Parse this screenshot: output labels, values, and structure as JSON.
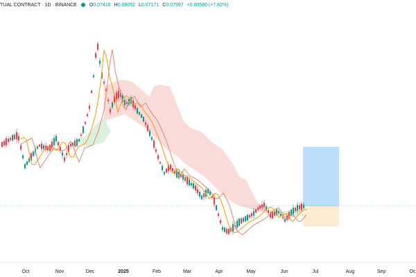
{
  "header": {
    "title": "TUAL CONTRACT · 1D · BINANCE",
    "status_color": "#089981",
    "open_label": "O",
    "open": "0.07416",
    "high_label": "H",
    "high": "0.08052",
    "low_label": "L",
    "low": "0.07171",
    "close_label": "C",
    "close": "0.07997",
    "change": "+0.00580 (+7.82%)"
  },
  "x_axis": {
    "labels": [
      "Oct",
      "Nov",
      "Dec",
      "2025",
      "Feb",
      "Mar",
      "Apr",
      "May",
      "Jun",
      "Jul",
      "Aug",
      "Sep",
      "Oc"
    ],
    "bold_label": "2025"
  },
  "colors": {
    "up": "#089981",
    "down": "#f23645",
    "ma_fast": "#ff9800",
    "ma_slow": "#e8846e",
    "cloud_bear": "#f8d6d3",
    "cloud_bull": "#d7eedc",
    "target_zone": "#bbdefb",
    "stop_zone": "#fdebd2",
    "price_line": "#66bbbb"
  },
  "chart_data": {
    "type": "candlestick",
    "interval": "1D",
    "exchange": "BINANCE",
    "last_ohlc": {
      "open": 0.07416,
      "high": 0.08052,
      "low": 0.07171,
      "close": 0.07997
    },
    "approx_close_path": [
      {
        "month": "Oct",
        "close": 0.52
      },
      {
        "month": "Nov",
        "close": 0.55
      },
      {
        "month": "Dec",
        "close": 0.95
      },
      {
        "month": "2025",
        "close": 0.7
      },
      {
        "month": "Feb",
        "close": 0.5
      },
      {
        "month": "Mar",
        "close": 0.32
      },
      {
        "month": "Apr",
        "close": 0.1
      },
      {
        "month": "May",
        "close": 0.12
      },
      {
        "month": "Jun",
        "close": 0.08
      }
    ],
    "overlays": [
      "ichimoku-cloud",
      "moving-average-fast",
      "moving-average-slow",
      "long-position-tool"
    ]
  }
}
